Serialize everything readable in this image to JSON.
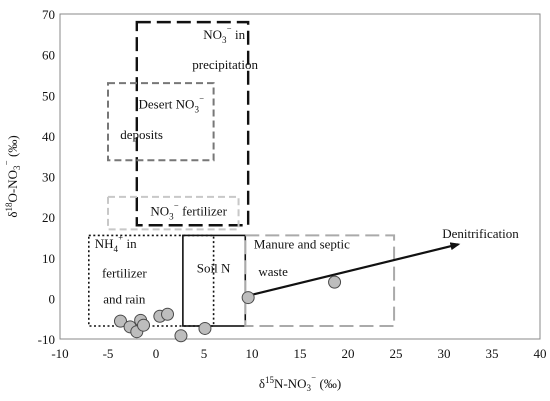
{
  "chart_data": {
    "type": "scatter",
    "xlabel": "δ15N-NO3⁻ (‰)",
    "ylabel": "δ18O-NO3⁻ (‰)",
    "xlim": [
      -10,
      40
    ],
    "ylim": [
      -10,
      70
    ],
    "xticks": [
      -10,
      -5,
      0,
      5,
      10,
      15,
      20,
      25,
      30,
      35,
      40
    ],
    "yticks": [
      -10,
      0,
      10,
      20,
      30,
      40,
      50,
      60,
      70
    ],
    "grid": false,
    "points": [
      {
        "x": -3.7,
        "y": -5.6
      },
      {
        "x": -2.7,
        "y": -7.0
      },
      {
        "x": -2.0,
        "y": -8.2
      },
      {
        "x": -1.6,
        "y": -5.4
      },
      {
        "x": -1.3,
        "y": -6.6
      },
      {
        "x": 0.4,
        "y": -4.4
      },
      {
        "x": 1.2,
        "y": -3.9
      },
      {
        "x": 2.6,
        "y": -9.2
      },
      {
        "x": 5.1,
        "y": -7.4
      },
      {
        "x": 9.6,
        "y": 0.2
      },
      {
        "x": 18.6,
        "y": 4.0
      }
    ],
    "regions": [
      {
        "name": "NO3⁻ in precipitation",
        "x": [
          -2,
          9.6
        ],
        "y": [
          18,
          68
        ],
        "color": "#111111",
        "dash": "long-dash",
        "width": 2.4
      },
      {
        "name": "Desert NO3⁻ deposits",
        "x": [
          -5,
          6
        ],
        "y": [
          34,
          53
        ],
        "color": "#777777",
        "dash": "dash",
        "width": 2
      },
      {
        "name": "NO3⁻ fertilizer",
        "x": [
          -5,
          8.6
        ],
        "y": [
          17,
          25
        ],
        "color": "#c8c8c8",
        "dash": "dash",
        "width": 2
      },
      {
        "name": "NH4⁺ in fertilizer and rain",
        "x": [
          -7,
          6
        ],
        "y": [
          -6.8,
          15.5
        ],
        "color": "#111111",
        "dash": "dot",
        "width": 1.6
      },
      {
        "name": "Soil N",
        "x": [
          2.8,
          9.3
        ],
        "y": [
          -6.8,
          15.5
        ],
        "color": "#111111",
        "dash": "solid",
        "width": 1.6
      },
      {
        "name": "Manure and septic waste",
        "x": [
          9.3,
          24.8
        ],
        "y": [
          -6.8,
          15.5
        ],
        "color": "#aaaaaa",
        "dash": "long-dash",
        "width": 2
      }
    ],
    "arrow": {
      "label": "Denitrification",
      "from": [
        9.3,
        0.5
      ],
      "to": [
        31.5,
        13.3
      ],
      "color": "#111111"
    },
    "annotations": [
      {
        "id": "precip-1",
        "text": "NO3⁻ in",
        "x": 7.1,
        "y": 63.8
      },
      {
        "id": "precip-2",
        "text": "precipitation",
        "x": 7.2,
        "y": 56.5
      },
      {
        "id": "desert-1",
        "text": "Desert NO3⁻",
        "x": 1.6,
        "y": 46.8
      },
      {
        "id": "desert-2",
        "text": "deposits",
        "x": -1.5,
        "y": 39.2
      },
      {
        "id": "fert",
        "text": "NO3⁻ fertilizer",
        "x": 3.4,
        "y": 20.4
      },
      {
        "id": "nh4-1",
        "text": "NH4⁺ in",
        "x": -4.2,
        "y": 12.4
      },
      {
        "id": "nh4-2",
        "text": "fertilizer",
        "x": -3.3,
        "y": 5.2
      },
      {
        "id": "nh4-3",
        "text": "and rain",
        "x": -3.3,
        "y": -1.3
      },
      {
        "id": "soil",
        "text": "Soil N",
        "x": 6.0,
        "y": 6.4
      },
      {
        "id": "manure-1",
        "text": "Manure and septic",
        "x": 15.2,
        "y": 12.3
      },
      {
        "id": "manure-2",
        "text": "waste",
        "x": 12.2,
        "y": 5.5
      },
      {
        "id": "denit",
        "text": "Denitrification",
        "x": 33.8,
        "y": 14.9
      }
    ]
  }
}
